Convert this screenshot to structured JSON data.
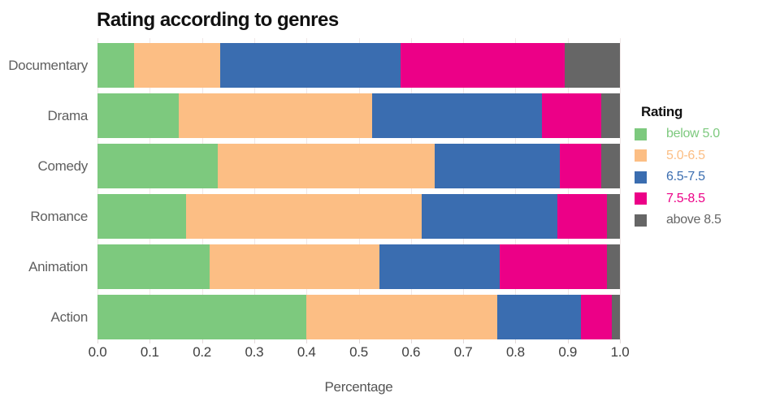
{
  "chart_data": {
    "type": "bar",
    "variant": "horizontal_stacked",
    "title": "Rating according to genres",
    "xlabel": "Percentage",
    "legend_title": "Rating",
    "legend_position": "right",
    "grid": true,
    "xlim": [
      0.0,
      1.0
    ],
    "xticks": [
      "0.0",
      "0.1",
      "0.2",
      "0.3",
      "0.4",
      "0.5",
      "0.6",
      "0.7",
      "0.8",
      "0.9",
      "1.0"
    ],
    "categories": [
      "Documentary",
      "Drama",
      "Comedy",
      "Romance",
      "Animation",
      "Action"
    ],
    "series": [
      {
        "name": "below 5.0",
        "color": "#7dc97e",
        "values": [
          0.07,
          0.155,
          0.23,
          0.17,
          0.215,
          0.4
        ]
      },
      {
        "name": "5.0-6.5",
        "color": "#fcbe84",
        "values": [
          0.165,
          0.37,
          0.415,
          0.45,
          0.325,
          0.365
        ]
      },
      {
        "name": "6.5-7.5",
        "color": "#3a6db0",
        "values": [
          0.345,
          0.325,
          0.24,
          0.26,
          0.23,
          0.16
        ]
      },
      {
        "name": "7.5-8.5",
        "color": "#ec0087",
        "values": [
          0.315,
          0.115,
          0.08,
          0.095,
          0.205,
          0.06
        ]
      },
      {
        "name": "above 8.5",
        "color": "#666666",
        "values": [
          0.105,
          0.035,
          0.035,
          0.025,
          0.025,
          0.015
        ]
      }
    ]
  },
  "style_colors": {
    "background": "#ffffff",
    "title_text": "#111111",
    "axis_tick_text": "#3f3f3f",
    "category_text": "#5f5f5f",
    "gridline": "#f0e7e7"
  }
}
